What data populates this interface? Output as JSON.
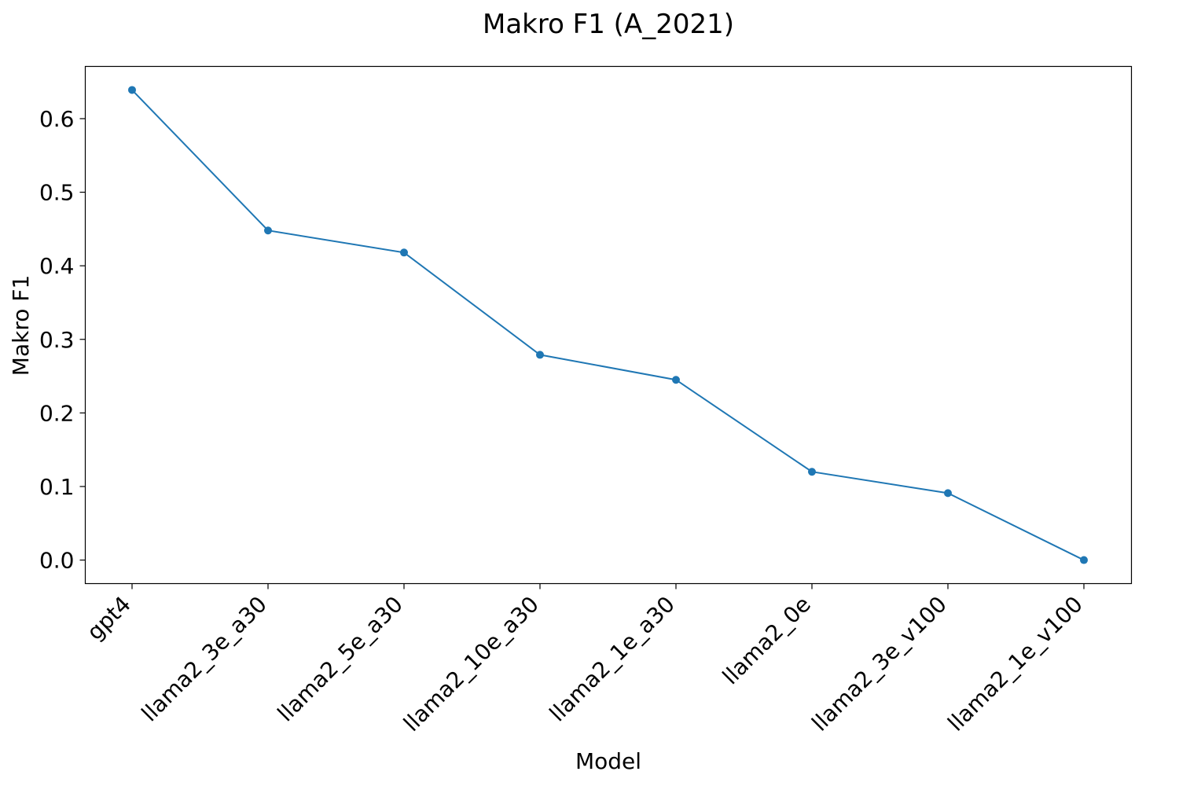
{
  "chart_data": {
    "type": "line",
    "title": "Makro F1 (A_2021)",
    "xlabel": "Model",
    "ylabel": "Makro F1",
    "categories": [
      "gpt4",
      "llama2_3e_a30",
      "llama2_5e_a30",
      "llama2_10e_a30",
      "llama2_1e_a30",
      "llama2_0e",
      "llama2_3e_v100",
      "llama2_1e_v100"
    ],
    "series": [
      {
        "values": [
          0.639,
          0.448,
          0.418,
          0.279,
          0.245,
          0.12,
          0.091,
          0.0
        ],
        "color": "#1f77b4"
      }
    ],
    "ylim": [
      -0.032,
      0.671
    ],
    "yticks": [
      0.0,
      0.1,
      0.2,
      0.3,
      0.4,
      0.5,
      0.6
    ],
    "ytick_labels": [
      "0.0",
      "0.1",
      "0.2",
      "0.3",
      "0.4",
      "0.5",
      "0.6"
    ],
    "grid": false,
    "markers": true
  }
}
